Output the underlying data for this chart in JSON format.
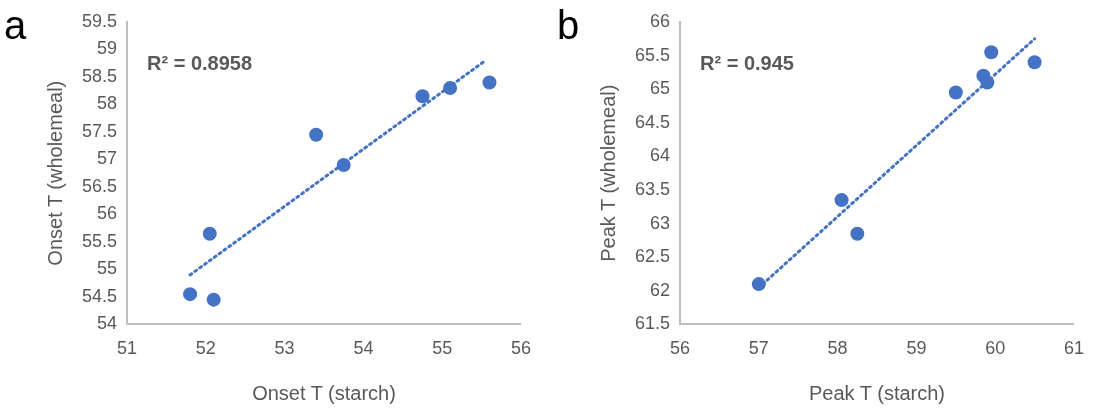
{
  "chart_data": [
    {
      "type": "scatter",
      "title": "a",
      "xlabel": "Onset T (starch)",
      "ylabel": "Onset T (wholemeal)",
      "annotations": [
        "R² = 0.8958"
      ],
      "xlim": [
        51,
        56
      ],
      "xticks": [
        51,
        52,
        53,
        54,
        55,
        56
      ],
      "ylim": [
        54,
        59.5
      ],
      "yticks": [
        54,
        54.5,
        55,
        55.5,
        56,
        56.5,
        57,
        57.5,
        58,
        58.5,
        59,
        59.5
      ],
      "grid": false,
      "legend": false,
      "marker": "circle",
      "series": [
        {
          "color": "#4472c4",
          "x": [
            51.8,
            52.1,
            52.05,
            53.4,
            53.75,
            54.75,
            55.1,
            55.6
          ],
          "values": [
            54.55,
            54.45,
            55.65,
            57.45,
            56.9,
            58.15,
            58.3,
            58.4
          ]
        },
        {
          "type": "line",
          "color": "#4472c4",
          "line_style": "dotted",
          "marker": "none",
          "x": [
            51.8,
            55.55
          ],
          "values": [
            54.9,
            58.8
          ]
        }
      ]
    },
    {
      "type": "scatter",
      "title": "b",
      "xlabel": "Peak T (starch)",
      "ylabel": "Peak T (wholemeal)",
      "annotations": [
        "R² = 0.945"
      ],
      "xlim": [
        56,
        61
      ],
      "xticks": [
        56,
        57,
        58,
        59,
        60,
        61
      ],
      "ylim": [
        61.5,
        66
      ],
      "yticks": [
        61.5,
        62,
        62.5,
        63,
        63.5,
        64,
        64.5,
        65,
        65.5,
        66
      ],
      "grid": false,
      "legend": false,
      "marker": "circle",
      "series": [
        {
          "color": "#4472c4",
          "x": [
            57,
            58.05,
            58.25,
            59.5,
            59.85,
            59.9,
            59.95,
            60.5
          ],
          "values": [
            62.1,
            63.35,
            62.85,
            64.95,
            65.2,
            65.1,
            65.55,
            65.4
          ]
        },
        {
          "type": "line",
          "color": "#4472c4",
          "line_style": "dotted",
          "marker": "none",
          "x": [
            57.05,
            60.5
          ],
          "values": [
            62.1,
            65.75
          ]
        }
      ]
    }
  ]
}
